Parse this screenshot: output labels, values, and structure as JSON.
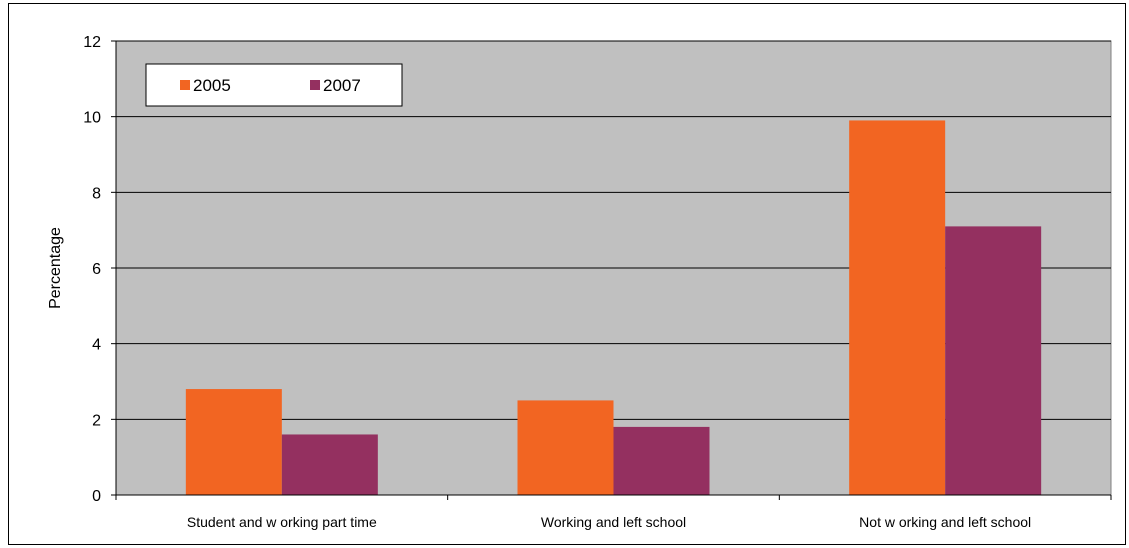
{
  "chart_data": {
    "type": "bar",
    "categories": [
      "Student and w orking part time",
      "Working and left school",
      "Not w orking and left school"
    ],
    "series": [
      {
        "name": "2005",
        "values": [
          2.8,
          2.5,
          9.9
        ],
        "color": "#f26522"
      },
      {
        "name": "2007",
        "values": [
          1.6,
          1.8,
          7.1
        ],
        "color": "#943060"
      }
    ],
    "title": "",
    "xlabel": "",
    "ylabel": "Percentage",
    "ylim": [
      0,
      12
    ],
    "yticks": [
      "0",
      "2",
      "4",
      "6",
      "8",
      "10",
      "12"
    ],
    "grid": true,
    "legend_position": "top-left",
    "plot_background": "#c0c0c0"
  }
}
